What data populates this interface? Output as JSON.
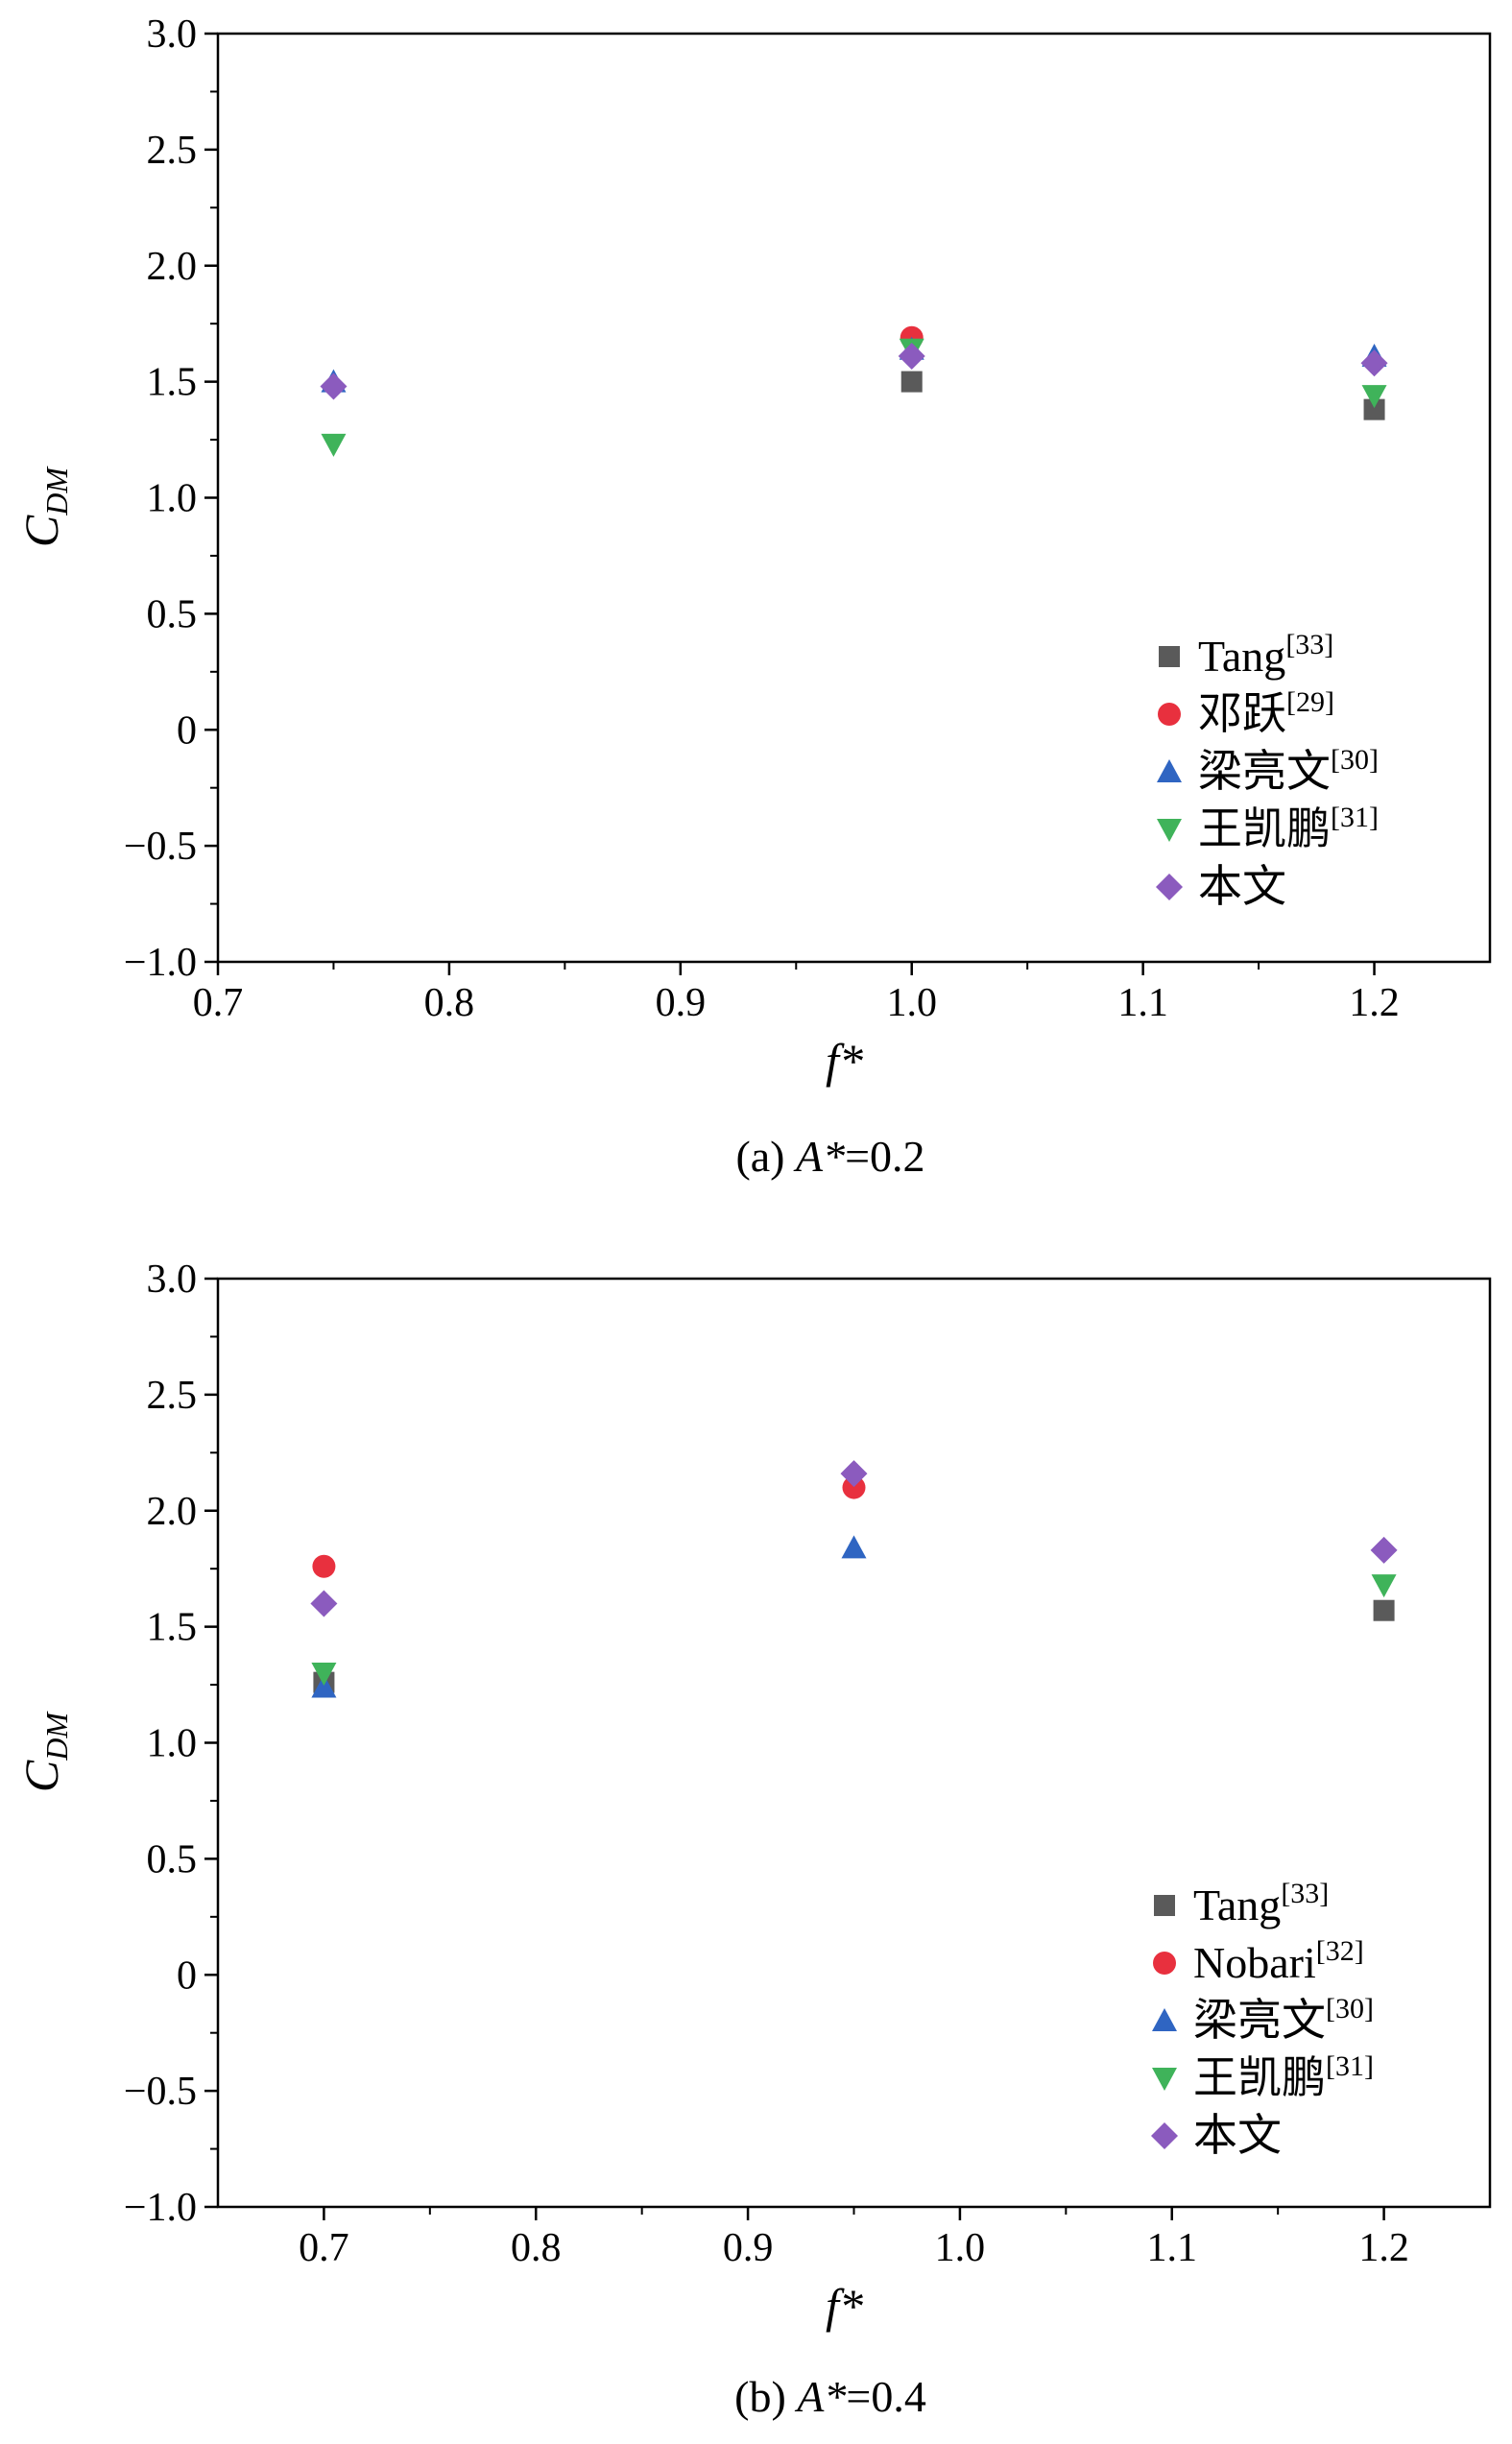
{
  "chart_data": [
    {
      "type": "scatter",
      "caption_prefix": "(a) ",
      "caption_var": "A*",
      "caption_value": "=0.2",
      "xlabel": "f*",
      "ylabel_main": "C",
      "ylabel_sub": "DM",
      "xlim": [
        0.7,
        1.25
      ],
      "ylim": [
        -1.0,
        3.0
      ],
      "xticks": [
        0.7,
        0.8,
        0.9,
        1.0,
        1.1,
        1.2
      ],
      "xtick_labels": [
        "0.7",
        "0.8",
        "0.9",
        "1.0",
        "1.1",
        "1.2"
      ],
      "yticks": [
        -1.0,
        -0.5,
        0,
        0.5,
        1.0,
        1.5,
        2.0,
        2.5,
        3.0
      ],
      "ytick_labels": [
        "−1.0",
        "−0.5",
        "0",
        "0.5",
        "1.0",
        "1.5",
        "2.0",
        "2.5",
        "3.0"
      ],
      "legend_position": "bottom-right",
      "series": [
        {
          "name": "Tang",
          "ref": "[33]",
          "marker": "square",
          "color": "#5a5a5a",
          "points": [
            {
              "x": 1.0,
              "y": 1.5
            },
            {
              "x": 1.2,
              "y": 1.38
            }
          ]
        },
        {
          "name": "邓跃",
          "ref": "[29]",
          "marker": "circle",
          "color": "#e8303e",
          "points": [
            {
              "x": 1.0,
              "y": 1.69
            }
          ]
        },
        {
          "name": "梁亮文",
          "ref": "[30]",
          "marker": "triangle-up",
          "color": "#2f65c2",
          "points": [
            {
              "x": 0.75,
              "y": 1.5
            },
            {
              "x": 1.0,
              "y": 1.64
            },
            {
              "x": 1.2,
              "y": 1.61
            }
          ]
        },
        {
          "name": "王凯鹏",
          "ref": "[31]",
          "marker": "triangle-down",
          "color": "#3fb35a",
          "points": [
            {
              "x": 0.75,
              "y": 1.23
            },
            {
              "x": 1.0,
              "y": 1.64
            },
            {
              "x": 1.2,
              "y": 1.44
            }
          ]
        },
        {
          "name": "本文",
          "ref": "",
          "marker": "diamond",
          "color": "#8b5bbe",
          "points": [
            {
              "x": 0.75,
              "y": 1.48
            },
            {
              "x": 1.0,
              "y": 1.61
            },
            {
              "x": 1.2,
              "y": 1.58
            }
          ]
        }
      ]
    },
    {
      "type": "scatter",
      "caption_prefix": "(b) ",
      "caption_var": "A*",
      "caption_value": "=0.4",
      "xlabel": "f*",
      "ylabel_main": "C",
      "ylabel_sub": "DM",
      "xlim": [
        0.65,
        1.25
      ],
      "ylim": [
        -1.0,
        3.0
      ],
      "xticks": [
        0.7,
        0.8,
        0.9,
        1.0,
        1.1,
        1.2
      ],
      "xtick_labels": [
        "0.7",
        "0.8",
        "0.9",
        "1.0",
        "1.1",
        "1.2"
      ],
      "yticks": [
        -1.0,
        -0.5,
        0,
        0.5,
        1.0,
        1.5,
        2.0,
        2.5,
        3.0
      ],
      "ytick_labels": [
        "−1.0",
        "−0.5",
        "0",
        "0.5",
        "1.0",
        "1.5",
        "2.0",
        "2.5",
        "3.0"
      ],
      "legend_position": "bottom-right",
      "series": [
        {
          "name": "Tang",
          "ref": "[33]",
          "marker": "square",
          "color": "#5a5a5a",
          "points": [
            {
              "x": 0.7,
              "y": 1.26
            },
            {
              "x": 1.2,
              "y": 1.57
            }
          ]
        },
        {
          "name": "Nobari",
          "ref": "[32]",
          "marker": "circle",
          "color": "#e8303e",
          "points": [
            {
              "x": 0.7,
              "y": 1.76
            },
            {
              "x": 0.95,
              "y": 2.1
            }
          ]
        },
        {
          "name": "梁亮文",
          "ref": "[30]",
          "marker": "triangle-up",
          "color": "#2f65c2",
          "points": [
            {
              "x": 0.7,
              "y": 1.24
            },
            {
              "x": 0.95,
              "y": 1.84
            }
          ]
        },
        {
          "name": "王凯鹏",
          "ref": "[31]",
          "marker": "triangle-down",
          "color": "#3fb35a",
          "points": [
            {
              "x": 0.7,
              "y": 1.3
            },
            {
              "x": 1.2,
              "y": 1.68
            }
          ]
        },
        {
          "name": "本文",
          "ref": "",
          "marker": "diamond",
          "color": "#8b5bbe",
          "points": [
            {
              "x": 0.7,
              "y": 1.6
            },
            {
              "x": 0.95,
              "y": 2.16
            },
            {
              "x": 1.2,
              "y": 1.83
            }
          ]
        }
      ]
    }
  ]
}
